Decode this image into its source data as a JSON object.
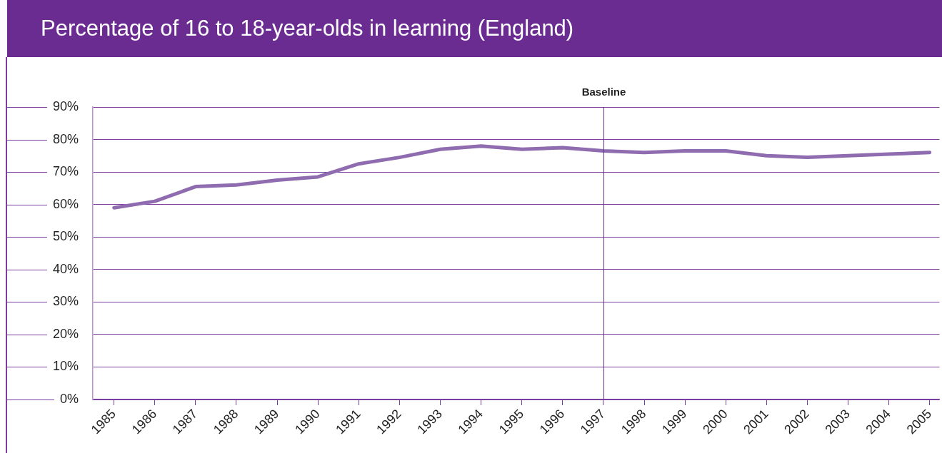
{
  "chart_data": {
    "type": "line",
    "title": "Percentage of 16 to 18-year-olds in learning (England)",
    "categories": [
      "1985",
      "1986",
      "1987",
      "1988",
      "1989",
      "1990",
      "1991",
      "1992",
      "1993",
      "1994",
      "1995",
      "1996",
      "1997",
      "1998",
      "1999",
      "2000",
      "2001",
      "2002",
      "2003",
      "2004",
      "2005"
    ],
    "series": [
      {
        "color": "#8f6cb0",
        "values": [
          59,
          61,
          65.5,
          66,
          67.5,
          68.5,
          72.5,
          74.5,
          77,
          78,
          77,
          77.5,
          76.5,
          76,
          76.5,
          76.5,
          75,
          74.5,
          75,
          75.5,
          76
        ]
      }
    ],
    "ylim": [
      0,
      90
    ],
    "yticks": [
      {
        "value": 0,
        "label": "0%"
      },
      {
        "value": 10,
        "label": "10%"
      },
      {
        "value": 20,
        "label": "20%"
      },
      {
        "value": 30,
        "label": "30%"
      },
      {
        "value": 40,
        "label": "40%"
      },
      {
        "value": 50,
        "label": "50%"
      },
      {
        "value": 60,
        "label": "60%"
      },
      {
        "value": 70,
        "label": "70%"
      },
      {
        "value": 80,
        "label": "80%"
      },
      {
        "value": 90,
        "label": "90%"
      }
    ],
    "grid": "y",
    "marker": "none",
    "line_style": "solid",
    "ref_lines": [
      {
        "axis": "x",
        "value": "1997",
        "label": "Baseline",
        "color": "#6b2d90"
      }
    ]
  }
}
